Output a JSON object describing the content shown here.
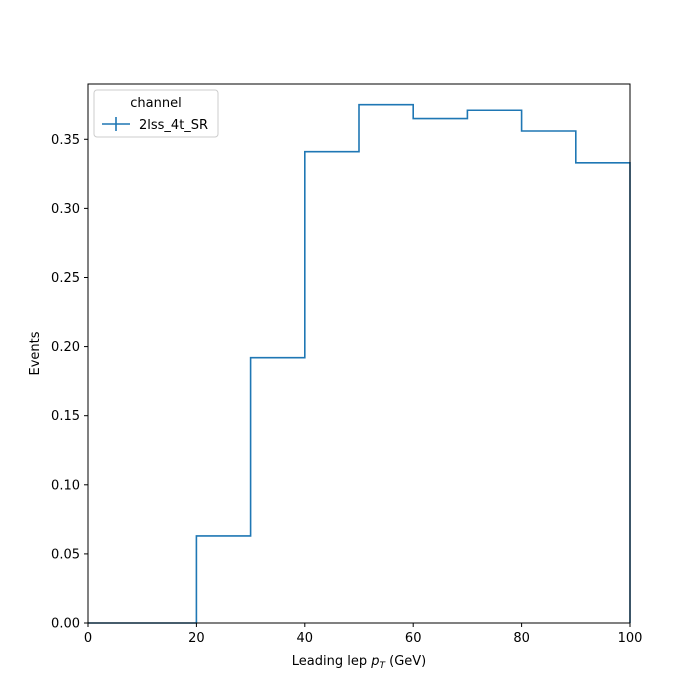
{
  "chart_data": {
    "type": "step",
    "xlabel": "Leading lep p_T (GeV)",
    "xlabel_parts": {
      "prefix": "Leading lep ",
      "var": "p",
      "sub": "T",
      "suffix": " (GeV)"
    },
    "ylabel": "Events",
    "xlim": [
      0,
      100
    ],
    "ylim": [
      0.0,
      0.39
    ],
    "xticks": [
      0,
      20,
      40,
      60,
      80,
      100
    ],
    "xtick_labels": [
      "0",
      "20",
      "40",
      "60",
      "80",
      "100"
    ],
    "yticks": [
      0.0,
      0.05,
      0.1,
      0.15,
      0.2,
      0.25,
      0.3,
      0.35
    ],
    "ytick_labels": [
      "0.00",
      "0.05",
      "0.10",
      "0.15",
      "0.20",
      "0.25",
      "0.30",
      "0.35"
    ],
    "bin_edges": [
      0,
      10,
      20,
      30,
      40,
      50,
      60,
      70,
      80,
      90,
      100
    ],
    "series": [
      {
        "name": "2lss_4t_SR",
        "color": "#1f77b4",
        "values": [
          0.0,
          0.0,
          0.063,
          0.192,
          0.341,
          0.375,
          0.365,
          0.371,
          0.356,
          0.333
        ]
      }
    ],
    "legend": {
      "title": "channel",
      "placement": "top-left"
    },
    "grid": false
  }
}
